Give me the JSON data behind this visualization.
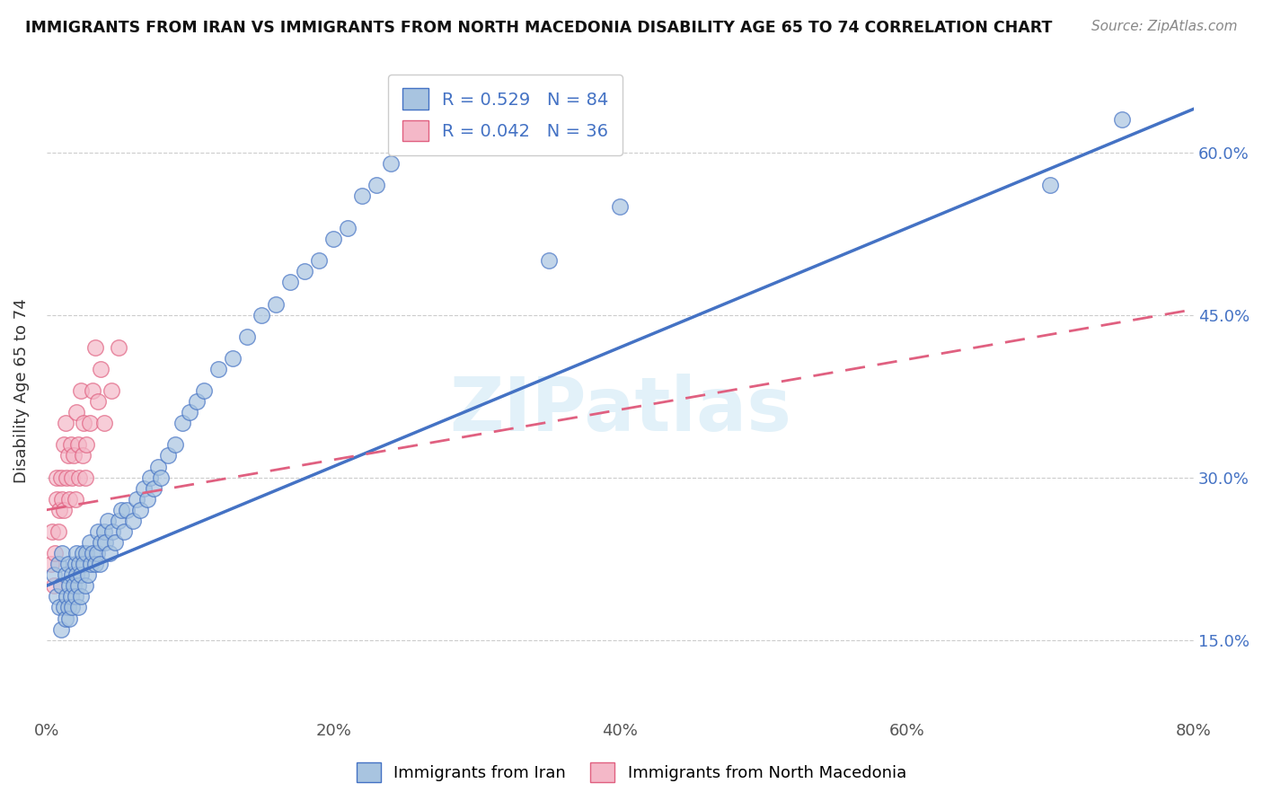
{
  "title": "IMMIGRANTS FROM IRAN VS IMMIGRANTS FROM NORTH MACEDONIA DISABILITY AGE 65 TO 74 CORRELATION CHART",
  "source": "Source: ZipAtlas.com",
  "ylabel": "Disability Age 65 to 74",
  "legend_label1": "Immigrants from Iran",
  "legend_label2": "Immigrants from North Macedonia",
  "R1": 0.529,
  "N1": 84,
  "R2": 0.042,
  "N2": 36,
  "color_iran": "#a8c4e0",
  "color_iran_edge": "#4472c4",
  "color_mac": "#f4b8c8",
  "color_mac_edge": "#e06080",
  "color_iran_line": "#4472c4",
  "color_mac_line": "#e06080",
  "xmin": 0.0,
  "xmax": 0.8,
  "ymin": 0.08,
  "ymax": 0.68,
  "yticks": [
    0.15,
    0.3,
    0.45,
    0.6
  ],
  "xticks": [
    0.0,
    0.2,
    0.4,
    0.6,
    0.8
  ],
  "watermark": "ZIPatlas",
  "iran_line_x0": 0.0,
  "iran_line_y0": 0.2,
  "iran_line_x1": 0.8,
  "iran_line_y1": 0.64,
  "mac_line_x0": 0.0,
  "mac_line_y0": 0.27,
  "mac_line_x1": 0.8,
  "mac_line_y1": 0.455,
  "iran_x": [
    0.005,
    0.007,
    0.008,
    0.009,
    0.01,
    0.01,
    0.011,
    0.012,
    0.013,
    0.013,
    0.014,
    0.015,
    0.015,
    0.016,
    0.016,
    0.017,
    0.018,
    0.018,
    0.019,
    0.02,
    0.02,
    0.021,
    0.021,
    0.022,
    0.022,
    0.023,
    0.024,
    0.024,
    0.025,
    0.026,
    0.027,
    0.028,
    0.029,
    0.03,
    0.031,
    0.032,
    0.034,
    0.035,
    0.036,
    0.037,
    0.038,
    0.04,
    0.041,
    0.043,
    0.044,
    0.046,
    0.048,
    0.05,
    0.052,
    0.054,
    0.056,
    0.06,
    0.063,
    0.065,
    0.068,
    0.07,
    0.072,
    0.075,
    0.078,
    0.08,
    0.085,
    0.09,
    0.095,
    0.1,
    0.105,
    0.11,
    0.12,
    0.13,
    0.14,
    0.15,
    0.16,
    0.17,
    0.18,
    0.19,
    0.2,
    0.21,
    0.22,
    0.23,
    0.24,
    0.25,
    0.35,
    0.4,
    0.7,
    0.75
  ],
  "iran_y": [
    0.21,
    0.19,
    0.22,
    0.18,
    0.16,
    0.2,
    0.23,
    0.18,
    0.17,
    0.21,
    0.19,
    0.22,
    0.18,
    0.2,
    0.17,
    0.19,
    0.21,
    0.18,
    0.2,
    0.22,
    0.19,
    0.21,
    0.23,
    0.2,
    0.18,
    0.22,
    0.19,
    0.21,
    0.23,
    0.22,
    0.2,
    0.23,
    0.21,
    0.24,
    0.22,
    0.23,
    0.22,
    0.23,
    0.25,
    0.22,
    0.24,
    0.25,
    0.24,
    0.26,
    0.23,
    0.25,
    0.24,
    0.26,
    0.27,
    0.25,
    0.27,
    0.26,
    0.28,
    0.27,
    0.29,
    0.28,
    0.3,
    0.29,
    0.31,
    0.3,
    0.32,
    0.33,
    0.35,
    0.36,
    0.37,
    0.38,
    0.4,
    0.41,
    0.43,
    0.45,
    0.46,
    0.48,
    0.49,
    0.5,
    0.52,
    0.53,
    0.56,
    0.57,
    0.59,
    0.61,
    0.5,
    0.55,
    0.57,
    0.63
  ],
  "mac_x": [
    0.003,
    0.004,
    0.005,
    0.006,
    0.007,
    0.007,
    0.008,
    0.009,
    0.01,
    0.011,
    0.012,
    0.012,
    0.013,
    0.014,
    0.015,
    0.016,
    0.017,
    0.018,
    0.019,
    0.02,
    0.021,
    0.022,
    0.023,
    0.024,
    0.025,
    0.026,
    0.027,
    0.028,
    0.03,
    0.032,
    0.034,
    0.036,
    0.038,
    0.04,
    0.045,
    0.05
  ],
  "mac_y": [
    0.22,
    0.25,
    0.2,
    0.23,
    0.28,
    0.3,
    0.25,
    0.27,
    0.3,
    0.28,
    0.33,
    0.27,
    0.35,
    0.3,
    0.32,
    0.28,
    0.33,
    0.3,
    0.32,
    0.28,
    0.36,
    0.33,
    0.3,
    0.38,
    0.32,
    0.35,
    0.3,
    0.33,
    0.35,
    0.38,
    0.42,
    0.37,
    0.4,
    0.35,
    0.38,
    0.42
  ]
}
